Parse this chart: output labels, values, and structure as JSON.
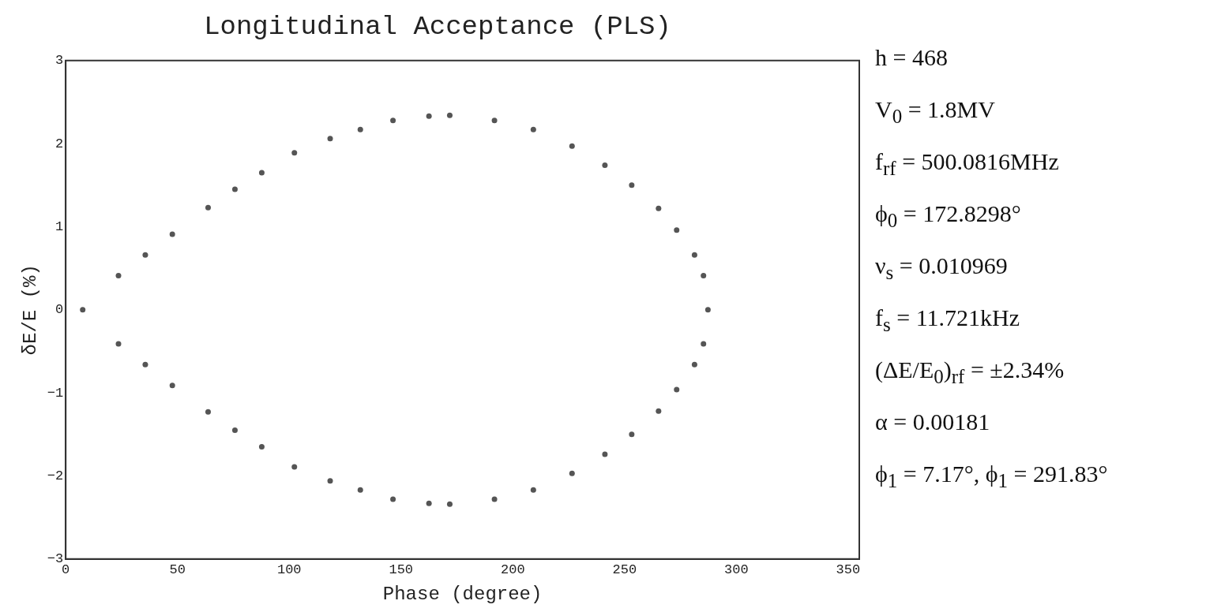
{
  "chart_data": {
    "type": "scatter",
    "title": "Longitudinal Acceptance (PLS)",
    "xlabel": "Phase (degree)",
    "ylabel": "δE/E (%)",
    "xlim": [
      0,
      355
    ],
    "xticks": [
      0,
      50,
      100,
      150,
      200,
      250,
      300,
      350
    ],
    "ylim": [
      -3,
      3
    ],
    "yticks": [
      -3,
      -2,
      -1,
      0,
      1,
      2,
      3
    ],
    "marker": "circle",
    "series": [
      {
        "color": "#555555",
        "x": [
          7.6,
          23.6,
          35.6,
          47.7,
          63.7,
          75.7,
          87.7,
          102.3,
          118.3,
          131.8,
          146.4,
          162.5,
          171.8,
          191.8,
          209.2,
          226.5,
          241.2,
          253.2,
          265.2,
          273.3,
          281.3,
          285.3,
          287.3,
          23.6,
          35.6,
          47.7,
          63.7,
          75.7,
          87.7,
          102.3,
          118.3,
          131.8,
          146.4,
          162.5,
          171.8,
          191.8,
          209.2,
          226.5,
          241.2,
          253.2,
          265.2,
          273.3,
          281.3,
          285.3
        ],
        "values": [
          0,
          0.41,
          0.66,
          0.91,
          1.23,
          1.45,
          1.65,
          1.89,
          2.06,
          2.17,
          2.28,
          2.33,
          2.34,
          2.28,
          2.17,
          1.97,
          1.74,
          1.5,
          1.22,
          0.96,
          0.66,
          0.41,
          0,
          -0.41,
          -0.66,
          -0.91,
          -1.23,
          -1.45,
          -1.65,
          -1.89,
          -2.06,
          -2.17,
          -2.28,
          -2.33,
          -2.34,
          -2.28,
          -2.17,
          -1.97,
          -1.74,
          -1.5,
          -1.22,
          -0.96,
          -0.66,
          -0.41
        ]
      }
    ],
    "annotations": [
      "h = 468",
      "V$_{0}$ = 1.8MV",
      "f$_{rf}$ = 500.0816MHz",
      "ϕ$_{0}$ = 172.8298°",
      "ν$_{s}$ = 0.010969",
      "f$_{s}$ = 11.721kHz",
      "(ΔE/E$_{0}$)$_{rf}$ = ±2.34%",
      "α = 0.00181",
      "ϕ$_{1}$ = 7.17°, ϕ$_{1}$ = 291.83°"
    ]
  }
}
